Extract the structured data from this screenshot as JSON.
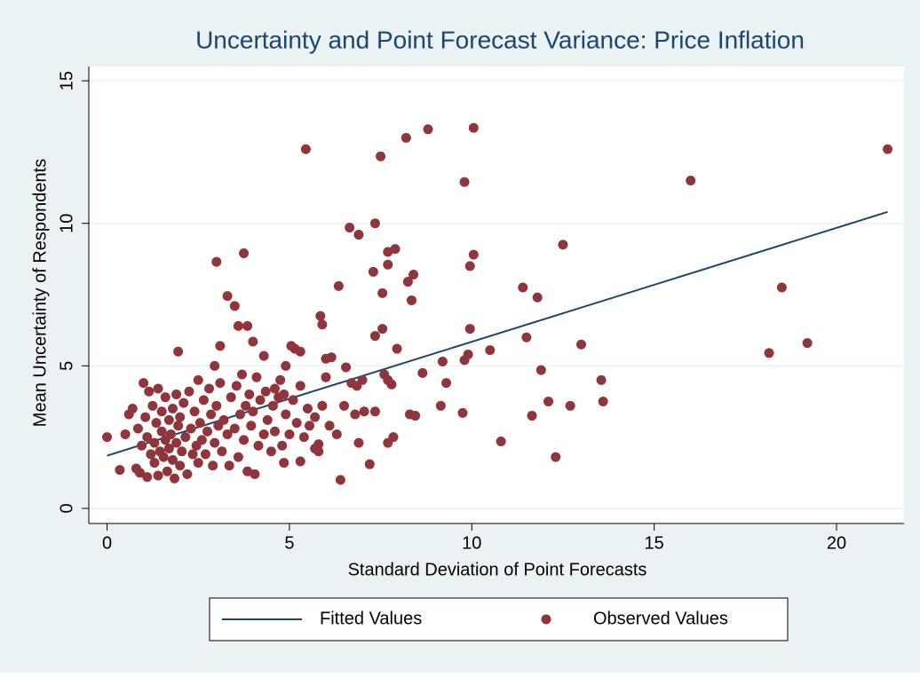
{
  "chart_data": {
    "type": "scatter",
    "title": "Uncertainty and Point Forecast Variance: Price Inflation",
    "x_label": "Standard Deviation of Point Forecasts",
    "y_label": "Mean Uncertainty of Respondents",
    "xlim": [
      -0.5,
      21.85
    ],
    "ylim": [
      -0.53,
      15.5
    ],
    "xticks": [
      0,
      5,
      10,
      15,
      20
    ],
    "yticks": [
      0,
      5,
      10,
      15
    ],
    "grid": true,
    "legend": "bottom",
    "series": [
      {
        "name": "Fitted Values",
        "type": "line",
        "color": "#1a476f",
        "x": [
          0,
          21.4
        ],
        "values": [
          1.85,
          10.4
        ]
      },
      {
        "name": "Observed Values",
        "type": "scatter",
        "color": "#90353b",
        "x": [
          0,
          5.45,
          7.5,
          8.2,
          8.8,
          10.05,
          9.8,
          16,
          21.4,
          18.5,
          18.15,
          19.2,
          12.5,
          10.05,
          9.95,
          11.4,
          11.8,
          11.5,
          13,
          13.55,
          13.6,
          12.7,
          12.1,
          11.65,
          12.3,
          10.8,
          11.9,
          10.5,
          9.95,
          9.9,
          9.8,
          9.75,
          9.15,
          9.3,
          9.2,
          8.65,
          8.4,
          8.25,
          8.35,
          7.9,
          7.7,
          7.7,
          7.35,
          7.3,
          6.9,
          6.65,
          6.35,
          7.55,
          7.35,
          7.55,
          7.95,
          5.85,
          5.9,
          3.0,
          3.75,
          3.3,
          3.5,
          3.6,
          3.85,
          8.3,
          8.45,
          7.7,
          7.85,
          7.2,
          6.4,
          6.9,
          7.05,
          7.35,
          7.8,
          7.6,
          7.7,
          6.85,
          7.0,
          6.55,
          6.15,
          6.0,
          6.3,
          5.8,
          5.7,
          5.3,
          4.85,
          1.95,
          2.95,
          3.1,
          4.0,
          4.3,
          5.15,
          5.3,
          5.05,
          4.75,
          4.9,
          4.6,
          0.35,
          0.5,
          0.6,
          0.7,
          0.8,
          0.85,
          0.9,
          0.95,
          1.0,
          1.05,
          1.1,
          1.1,
          1.15,
          1.2,
          1.25,
          1.3,
          1.3,
          1.35,
          1.4,
          1.4,
          1.45,
          1.5,
          1.5,
          1.55,
          1.6,
          1.6,
          1.65,
          1.7,
          1.7,
          1.75,
          1.8,
          1.8,
          1.85,
          1.9,
          1.9,
          1.95,
          2.0,
          2.0,
          2.05,
          2.1,
          2.15,
          2.2,
          2.25,
          2.3,
          2.35,
          2.4,
          2.45,
          2.5,
          2.5,
          2.55,
          2.6,
          2.65,
          2.7,
          2.75,
          2.8,
          2.85,
          2.9,
          2.95,
          3.0,
          3.05,
          3.1,
          3.15,
          3.2,
          3.3,
          3.35,
          3.4,
          3.5,
          3.55,
          3.6,
          3.65,
          3.7,
          3.75,
          3.8,
          3.85,
          3.9,
          3.95,
          4.0,
          4.05,
          4.1,
          4.15,
          4.2,
          4.3,
          4.35,
          4.4,
          4.5,
          4.55,
          4.6,
          4.7,
          4.8,
          4.85,
          4.9,
          5.0,
          5.1,
          5.2,
          5.3,
          5.4,
          5.5,
          5.55,
          5.7,
          5.8,
          5.9,
          6.0,
          6.1,
          6.5,
          6.7,
          6.8
        ],
        "values": [
          2.5,
          12.6,
          12.35,
          13.0,
          13.3,
          13.35,
          11.45,
          11.5,
          12.6,
          7.75,
          5.45,
          5.8,
          9.25,
          8.9,
          8.5,
          7.75,
          7.4,
          6.0,
          5.75,
          4.5,
          3.75,
          3.6,
          3.75,
          3.25,
          1.8,
          2.35,
          4.85,
          5.55,
          6.3,
          5.4,
          5.2,
          3.35,
          3.6,
          4.4,
          5.15,
          4.75,
          8.2,
          7.95,
          7.3,
          9.1,
          9.0,
          8.55,
          10.0,
          8.3,
          9.6,
          9.85,
          7.8,
          7.55,
          6.05,
          6.3,
          5.6,
          6.75,
          6.45,
          8.65,
          8.95,
          7.45,
          7.1,
          6.4,
          6.4,
          3.3,
          3.25,
          2.3,
          2.5,
          1.55,
          1.0,
          2.3,
          3.4,
          3.4,
          4.35,
          4.7,
          4.5,
          4.3,
          4.5,
          4.95,
          5.3,
          5.25,
          2.6,
          2.25,
          2.1,
          1.65,
          1.6,
          5.5,
          5.0,
          5.7,
          5.85,
          5.35,
          5.6,
          5.5,
          5.7,
          4.5,
          5.0,
          4.2,
          1.35,
          2.6,
          3.3,
          3.5,
          1.4,
          2.8,
          1.25,
          2.2,
          4.4,
          3.2,
          1.1,
          2.5,
          4.1,
          1.9,
          3.6,
          2.3,
          1.6,
          3.0,
          4.2,
          1.15,
          2.0,
          2.7,
          3.4,
          1.8,
          2.4,
          3.9,
          1.3,
          2.1,
          3.1,
          2.6,
          1.7,
          3.5,
          1.05,
          2.3,
          4.0,
          2.9,
          1.5,
          3.2,
          2.0,
          3.7,
          2.5,
          1.2,
          4.1,
          2.8,
          1.9,
          3.4,
          2.2,
          4.5,
          1.6,
          3.0,
          2.4,
          3.8,
          1.9,
          2.7,
          4.2,
          3.3,
          1.5,
          2.3,
          3.6,
          2.9,
          4.4,
          2.0,
          3.1,
          2.6,
          1.5,
          3.9,
          2.8,
          4.3,
          1.8,
          3.3,
          4.7,
          2.4,
          3.6,
          1.3,
          4.0,
          2.9,
          3.4,
          1.2,
          4.6,
          2.2,
          3.8,
          2.6,
          4.1,
          3.1,
          2.0,
          3.6,
          2.7,
          3.9,
          2.2,
          4.0,
          3.3,
          2.6,
          3.8,
          3.0,
          4.3,
          2.5,
          3.5,
          2.9,
          3.2,
          2.0,
          3.6,
          4.6,
          2.9,
          3.6,
          4.4,
          3.3
        ]
      }
    ]
  }
}
